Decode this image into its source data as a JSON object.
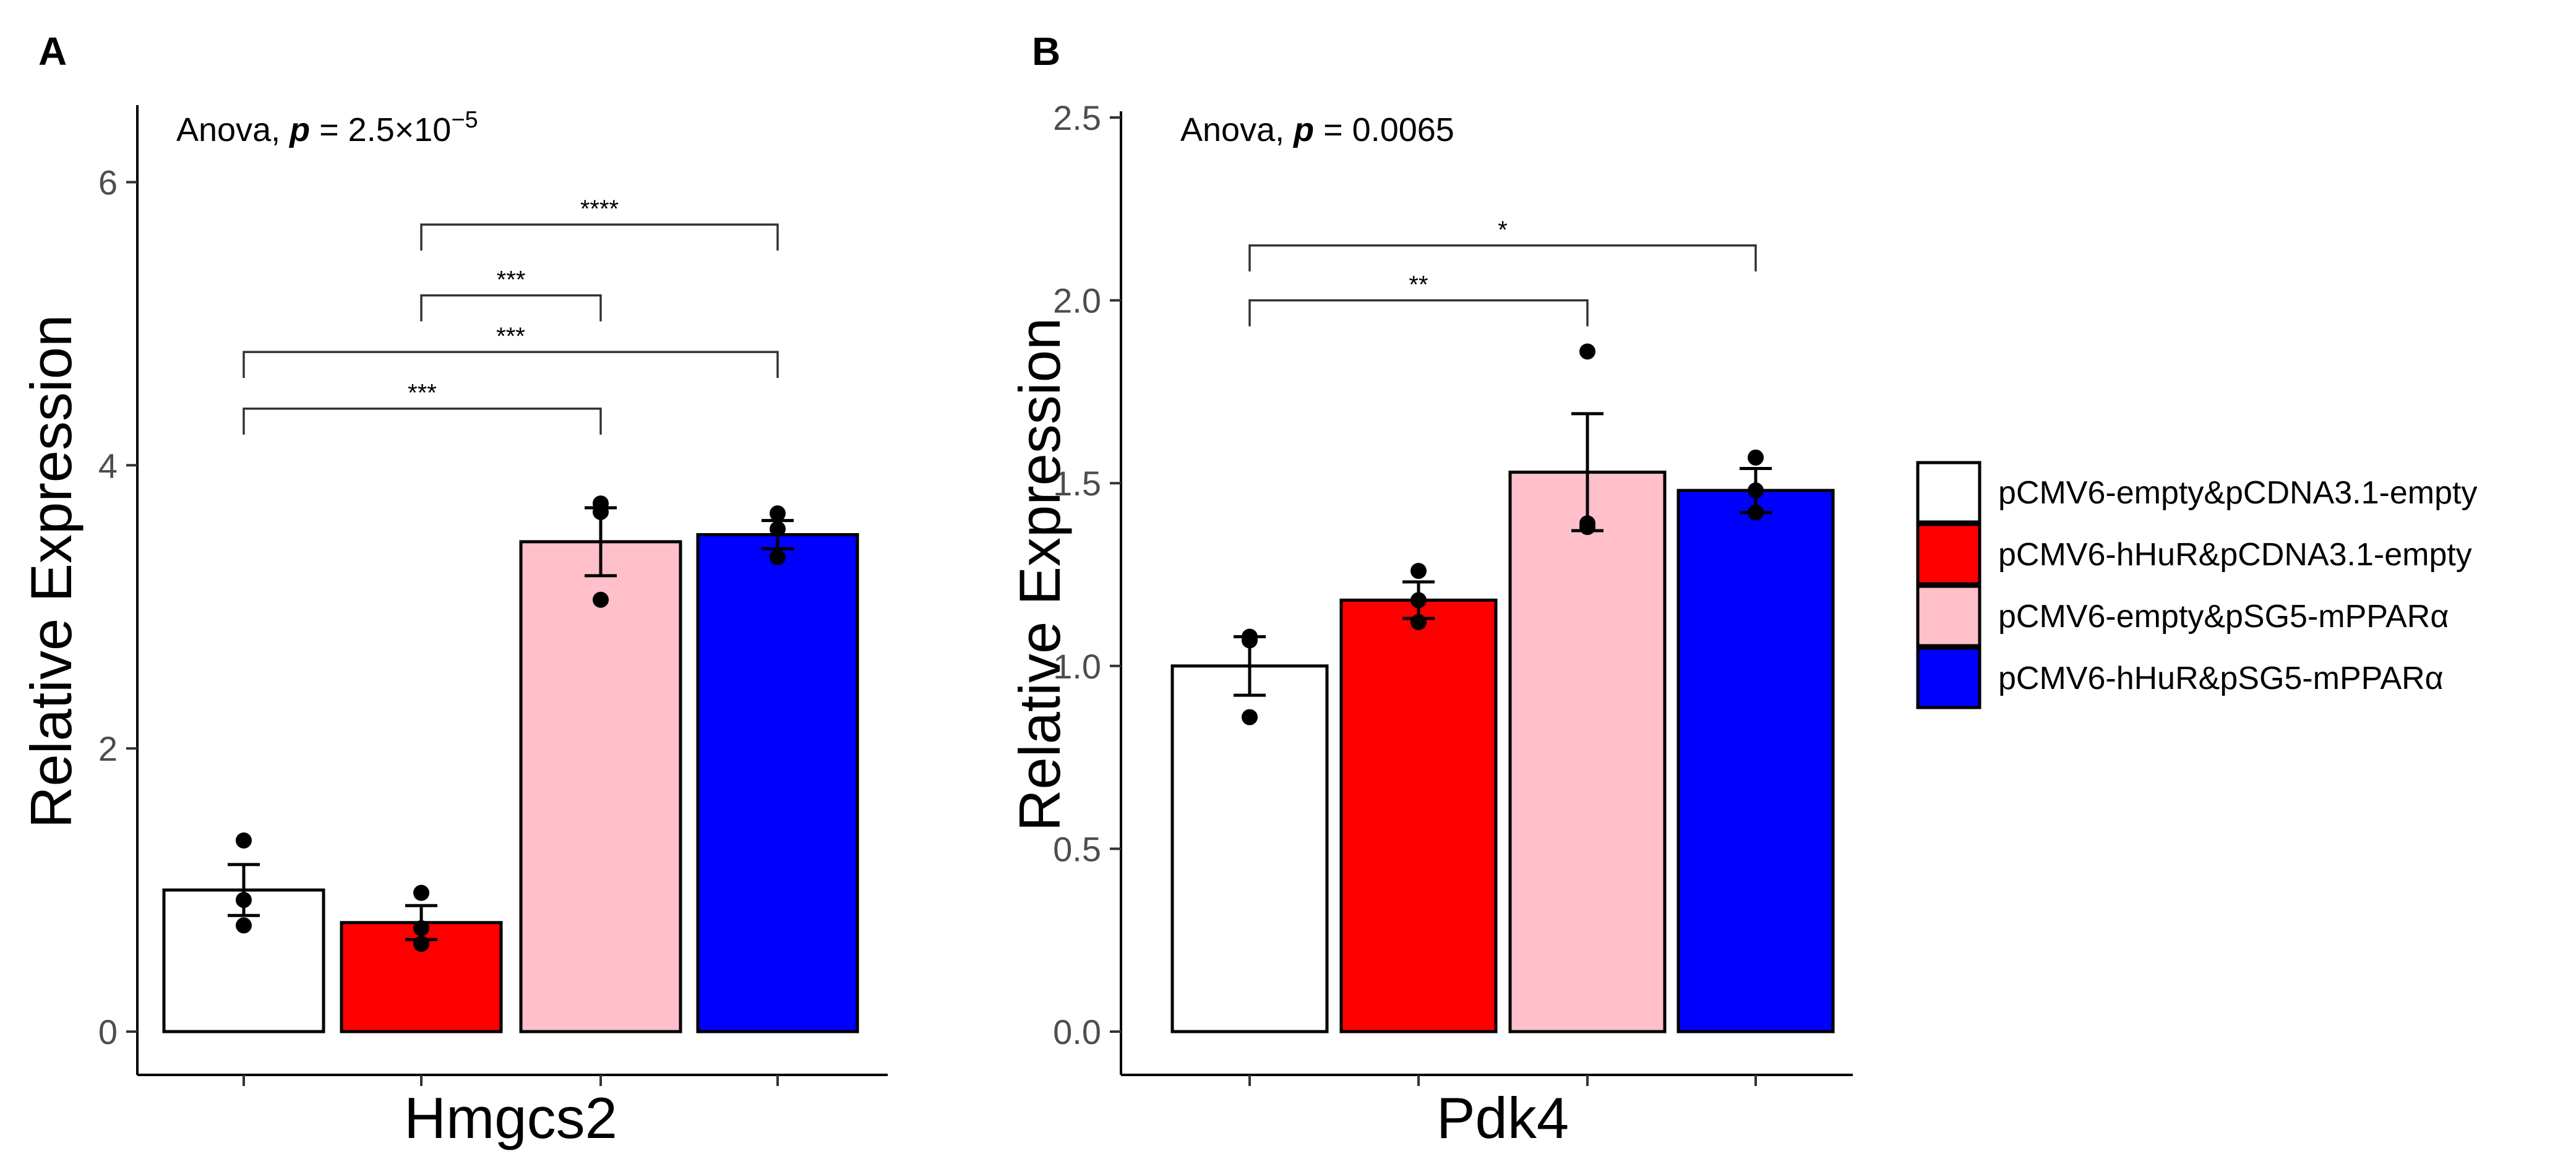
{
  "chart_data": [
    {
      "panel": "A",
      "type": "bar",
      "title": "",
      "annotation_prefix": "Anova, ",
      "annotation_p": "p",
      "annotation_value": " = 2.5×10",
      "annotation_exp": "−5",
      "xlabel": "Hmgcs2",
      "ylabel": "Relative Expression",
      "ylim": [
        0,
        6.5
      ],
      "yticks": [
        0,
        2,
        4,
        6
      ],
      "ytick_labels": [
        "0",
        "2",
        "4",
        "6"
      ],
      "series": [
        {
          "name": "pCMV6-empty&pCDNA3.1-empty",
          "value": 1.0,
          "error": 0.18,
          "points": [
            0.75,
            0.93,
            1.35
          ]
        },
        {
          "name": "pCMV6-hHuR&pCDNA3.1-empty",
          "value": 0.77,
          "error": 0.12,
          "points": [
            0.62,
            0.73,
            0.98
          ]
        },
        {
          "name": "pCMV6-empty&pSG5-mPPARα",
          "value": 3.46,
          "error": 0.24,
          "points": [
            3.05,
            3.67,
            3.73
          ]
        },
        {
          "name": "pCMV6-hHuR&pSG5-mPPARα",
          "value": 3.51,
          "error": 0.1,
          "points": [
            3.35,
            3.55,
            3.66
          ]
        }
      ],
      "significance": [
        {
          "from": 1,
          "to": 3,
          "label": "****",
          "y": 5.7
        },
        {
          "from": 1,
          "to": 2,
          "label": "***",
          "y": 5.2
        },
        {
          "from": 0,
          "to": 3,
          "label": "***",
          "y": 4.8
        },
        {
          "from": 0,
          "to": 2,
          "label": "***",
          "y": 4.4
        }
      ]
    },
    {
      "panel": "B",
      "type": "bar",
      "title": "",
      "annotation_prefix": "Anova, ",
      "annotation_p": "p",
      "annotation_value": " = 0.0065",
      "annotation_exp": "",
      "xlabel": "Pdk4",
      "ylabel": "Relative Expression",
      "ylim": [
        0,
        2.5
      ],
      "yticks": [
        0,
        0.5,
        1.0,
        1.5,
        2.0,
        2.5
      ],
      "ytick_labels": [
        "0.0",
        "0.5",
        "1.0",
        "1.5",
        "2.0",
        "2.5"
      ],
      "series": [
        {
          "name": "pCMV6-empty&pCDNA3.1-empty",
          "value": 1.0,
          "error": 0.08,
          "points": [
            0.86,
            1.07,
            1.08
          ]
        },
        {
          "name": "pCMV6-hHuR&pCDNA3.1-empty",
          "value": 1.18,
          "error": 0.05,
          "points": [
            1.12,
            1.18,
            1.26
          ]
        },
        {
          "name": "pCMV6-empty&pSG5-mPPARα",
          "value": 1.53,
          "error": 0.16,
          "points": [
            1.38,
            1.39,
            1.86
          ]
        },
        {
          "name": "pCMV6-hHuR&pSG5-mPPARα",
          "value": 1.48,
          "error": 0.06,
          "points": [
            1.42,
            1.48,
            1.57
          ]
        }
      ],
      "significance": [
        {
          "from": 0,
          "to": 3,
          "label": "*",
          "y": 2.15
        },
        {
          "from": 0,
          "to": 2,
          "label": "**",
          "y": 2.0
        }
      ]
    }
  ],
  "legend": {
    "items": [
      {
        "label": "pCMV6-empty&pCDNA3.1-empty",
        "color": "#FFFFFF"
      },
      {
        "label": "pCMV6-hHuR&pCDNA3.1-empty",
        "color": "#FF0000"
      },
      {
        "label": "pCMV6-empty&pSG5-mPPARα",
        "color": "#FFC0CB"
      },
      {
        "label": "pCMV6-hHuR&pSG5-mPPARα",
        "color": "#0000FF"
      }
    ]
  },
  "bar_colors": [
    "#FFFFFF",
    "#FF0000",
    "#FFC0CB",
    "#0000FF"
  ]
}
